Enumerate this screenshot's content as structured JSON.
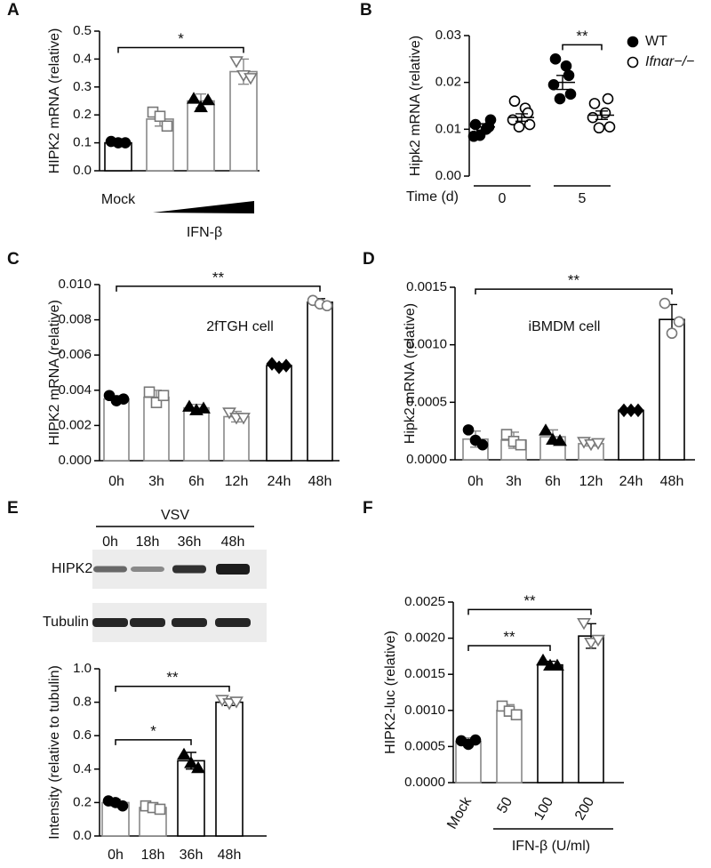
{
  "chart_data": [
    {
      "type": "bar",
      "panel": "A",
      "ylabel": "HIPK2 mRNA (relative)",
      "xlabel": "IFN-β",
      "categories": [
        "Mock",
        null,
        null,
        null
      ],
      "values": [
        0.1,
        0.185,
        0.25,
        0.355
      ],
      "errors": [
        0.005,
        0.025,
        0.025,
        0.045
      ],
      "points": [
        [
          0.105,
          0.1,
          0.1
        ],
        [
          0.21,
          0.195,
          0.16
        ],
        [
          0.26,
          0.23,
          0.255
        ],
        [
          0.39,
          0.34,
          0.33
        ]
      ],
      "markers": [
        "circle-filled",
        "square-open",
        "triangle-filled",
        "triangle-down-open"
      ],
      "point_colors": [
        "#000000",
        "#777777",
        "#000000",
        "#777777"
      ],
      "bar_edges": [
        "#000000",
        "#888888",
        "#888888",
        "#888888"
      ],
      "ylim": [
        0,
        0.5
      ],
      "yticks": [
        {
          "value": 0,
          "label": "0.0"
        },
        {
          "value": 0.1,
          "label": "0.1"
        },
        {
          "value": 0.2,
          "label": "0.2"
        },
        {
          "value": 0.3,
          "label": "0.3"
        },
        {
          "value": 0.4,
          "label": "0.4"
        },
        {
          "value": 0.5,
          "label": "0.5"
        }
      ],
      "comparisons": [
        {
          "label": "*",
          "categories": [
            0,
            3
          ]
        }
      ]
    },
    {
      "type": "dot",
      "panel": "B",
      "ylabel": "Hipk2 mRNA (relative)",
      "xlabel": "Time (d)",
      "categories": [
        "0",
        "5"
      ],
      "series": [
        {
          "name": "WT",
          "marker": "circle-filled",
          "color": "#000000",
          "values": [
            0.0105,
            0.02
          ],
          "errors": [
            0.0007,
            0.0015
          ],
          "points": [
            [
              0.011,
              0.01,
              0.0085,
              0.012,
              0.0087,
              0.0105
            ],
            [
              0.025,
              0.0235,
              0.0195,
              0.0175,
              0.0165,
              0.0215
            ]
          ]
        },
        {
          "name": "Ifnαr−/−",
          "marker": "circle-open",
          "color": "#000000",
          "values": [
            0.0125,
            0.013
          ],
          "errors": [
            0.0008,
            0.0009
          ],
          "points": [
            [
              0.016,
              0.0145,
              0.012,
              0.011,
              0.0105,
              0.0135
            ],
            [
              0.0155,
              0.0135,
              0.0125,
              0.0105,
              0.0103,
              0.0165
            ]
          ]
        }
      ],
      "ylim": [
        0,
        0.03
      ],
      "yticks": [
        {
          "value": 0,
          "label": "0.00"
        },
        {
          "value": 0.01,
          "label": "0.01"
        },
        {
          "value": 0.02,
          "label": "0.02"
        },
        {
          "value": 0.03,
          "label": "0.03"
        }
      ],
      "comparisons": [
        {
          "label": "**",
          "categories": [
            1,
            1
          ]
        }
      ]
    },
    {
      "type": "bar",
      "panel": "C",
      "ylabel": "HIPK2 mRNA (relative)",
      "note": "2fTGH cell",
      "categories": [
        "0h",
        "3h",
        "6h",
        "12h",
        "24h",
        "48h"
      ],
      "values": [
        0.0035,
        0.0036,
        0.003,
        0.0025,
        0.0054,
        0.009
      ],
      "errors": [
        0.0002,
        0.0004,
        0.0002,
        0.0003,
        0.0001,
        0.0002
      ],
      "points": [
        [
          0.0037,
          0.0034,
          0.0035
        ],
        [
          0.0039,
          0.0033,
          0.0037
        ],
        [
          0.0031,
          0.0029,
          0.003
        ],
        [
          0.0027,
          0.0024,
          0.0024
        ],
        [
          0.0055,
          0.0053,
          0.0054
        ],
        [
          0.0091,
          0.0089,
          0.0088
        ]
      ],
      "markers": [
        "circle-filled",
        "square-open",
        "triangle-filled",
        "triangle-down-open",
        "diamond-filled",
        "circle-open"
      ],
      "point_colors": [
        "#000000",
        "#777777",
        "#000000",
        "#777777",
        "#000000",
        "#777777"
      ],
      "bar_edges": [
        "#888888",
        "#888888",
        "#888888",
        "#888888",
        "#000000",
        "#000000"
      ],
      "ylim": [
        0,
        0.01
      ],
      "yticks": [
        {
          "value": 0,
          "label": "0.000"
        },
        {
          "value": 0.002,
          "label": "0.002"
        },
        {
          "value": 0.004,
          "label": "0.004"
        },
        {
          "value": 0.006,
          "label": "0.006"
        },
        {
          "value": 0.008,
          "label": "0.008"
        },
        {
          "value": 0.01,
          "label": "0.010"
        }
      ],
      "comparisons": [
        {
          "label": "**",
          "categories": [
            0,
            5
          ]
        }
      ]
    },
    {
      "type": "bar",
      "panel": "D",
      "ylabel": "Hipk2 mRNA (relative)",
      "note": "iBMDM cell",
      "categories": [
        "0h",
        "3h",
        "6h",
        "12h",
        "24h",
        "48h"
      ],
      "values": [
        0.00018,
        0.00017,
        0.0002,
        0.00014,
        0.00043,
        0.00122
      ],
      "errors": [
        7e-05,
        7e-05,
        6e-05,
        2e-05,
        1e-05,
        0.00013
      ],
      "points": [
        [
          0.00026,
          0.00017,
          0.00013
        ],
        [
          0.00022,
          0.00016,
          0.00013
        ],
        [
          0.00026,
          0.00018,
          0.00017
        ],
        [
          0.00015,
          0.00013,
          0.00014
        ],
        [
          0.00043,
          0.00043,
          0.00043
        ],
        [
          0.00136,
          0.0011,
          0.0012
        ]
      ],
      "markers": [
        "circle-filled",
        "square-open",
        "triangle-filled",
        "triangle-down-open",
        "diamond-filled",
        "circle-open"
      ],
      "point_colors": [
        "#000000",
        "#777777",
        "#000000",
        "#777777",
        "#000000",
        "#777777"
      ],
      "bar_edges": [
        "#888888",
        "#888888",
        "#888888",
        "#888888",
        "#000000",
        "#000000"
      ],
      "ylim": [
        0,
        0.0015
      ],
      "yticks": [
        {
          "value": 0,
          "label": "0.0000"
        },
        {
          "value": 0.0005,
          "label": "0.0005"
        },
        {
          "value": 0.001,
          "label": "0.0010"
        },
        {
          "value": 0.0015,
          "label": "0.0015"
        }
      ],
      "comparisons": [
        {
          "label": "**",
          "categories": [
            0,
            5
          ]
        }
      ]
    },
    {
      "type": "bar",
      "panel": "E",
      "ylabel": "Intensity (relative to tubulin)",
      "blot": {
        "title": "VSV",
        "lanes": [
          "0h",
          "18h",
          "36h",
          "48h"
        ],
        "rows": [
          "HIPK2",
          "Tubulin"
        ]
      },
      "categories": [
        "0h",
        "18h",
        "36h",
        "48h"
      ],
      "values": [
        0.2,
        0.17,
        0.45,
        0.8
      ],
      "errors": [
        0.02,
        0.02,
        0.05,
        0.02
      ],
      "points": [
        [
          0.21,
          0.2,
          0.18
        ],
        [
          0.18,
          0.17,
          0.16
        ],
        [
          0.49,
          0.44,
          0.41
        ],
        [
          0.81,
          0.79,
          0.8
        ]
      ],
      "markers": [
        "circle-filled",
        "square-open",
        "triangle-filled",
        "triangle-down-open"
      ],
      "point_colors": [
        "#000000",
        "#777777",
        "#000000",
        "#777777"
      ],
      "bar_edges": [
        "#888888",
        "#888888",
        "#000000",
        "#000000"
      ],
      "ylim": [
        0,
        1
      ],
      "yticks": [
        {
          "value": 0,
          "label": "0.0"
        },
        {
          "value": 0.2,
          "label": "0.2"
        },
        {
          "value": 0.4,
          "label": "0.4"
        },
        {
          "value": 0.6,
          "label": "0.6"
        },
        {
          "value": 0.8,
          "label": "0.8"
        },
        {
          "value": 1,
          "label": "1.0"
        }
      ],
      "comparisons": [
        {
          "label": "*",
          "categories": [
            0,
            2
          ]
        },
        {
          "label": "**",
          "categories": [
            0,
            3
          ]
        }
      ]
    },
    {
      "type": "bar",
      "panel": "F",
      "ylabel": "HIPK2-luc (relative)",
      "xlabel": "IFN-β (U/ml)",
      "categories": [
        "Mock",
        "50",
        "100",
        "200"
      ],
      "values": [
        0.00057,
        0.001,
        0.00163,
        0.00203
      ],
      "errors": [
        5e-05,
        8e-05,
        5e-05,
        0.00017
      ],
      "points": [
        [
          0.00058,
          0.00053,
          0.00059
        ],
        [
          0.00106,
          0.00099,
          0.00094
        ],
        [
          0.0017,
          0.00163,
          0.00163
        ],
        [
          0.0022,
          0.00193,
          0.00197
        ]
      ],
      "markers": [
        "circle-filled",
        "square-open",
        "triangle-filled",
        "triangle-down-open"
      ],
      "point_colors": [
        "#000000",
        "#777777",
        "#000000",
        "#777777"
      ],
      "bar_edges": [
        "#888888",
        "#888888",
        "#000000",
        "#000000"
      ],
      "ylim": [
        0,
        0.0025
      ],
      "yticks": [
        {
          "value": 0,
          "label": "0.0000"
        },
        {
          "value": 0.0005,
          "label": "0.0005"
        },
        {
          "value": 0.001,
          "label": "0.0010"
        },
        {
          "value": 0.0015,
          "label": "0.0015"
        },
        {
          "value": 0.002,
          "label": "0.0020"
        },
        {
          "value": 0.0025,
          "label": "0.0025"
        }
      ],
      "comparisons": [
        {
          "label": "**",
          "categories": [
            0,
            2
          ]
        },
        {
          "label": "**",
          "categories": [
            0,
            3
          ]
        }
      ]
    }
  ]
}
